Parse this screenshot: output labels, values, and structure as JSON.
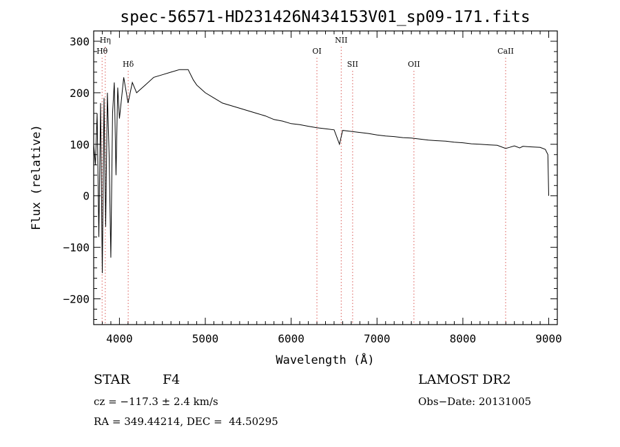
{
  "chart_data": {
    "type": "line",
    "title": "spec-56571-HD231426N434153V01_sp09-171.fits",
    "xlabel": "Wavelength (Å)",
    "ylabel": "Flux (relative)",
    "xlim": [
      3700,
      9100
    ],
    "ylim": [
      -250,
      320
    ],
    "x_ticks": [
      4000,
      5000,
      6000,
      7000,
      8000,
      9000
    ],
    "y_ticks": [
      -200,
      -100,
      0,
      100,
      200,
      300
    ],
    "grid": false,
    "series": [
      {
        "x": [
          3700,
          3720,
          3740,
          3760,
          3780,
          3800,
          3820,
          3840,
          3860,
          3880,
          3900,
          3920,
          3940,
          3960,
          3980,
          4000,
          4050,
          4100,
          4150,
          4200,
          4300,
          4400,
          4500,
          4600,
          4700,
          4800,
          4860,
          4900,
          5000,
          5100,
          5200,
          5300,
          5400,
          5500,
          5600,
          5700,
          5800,
          5900,
          6000,
          6100,
          6200,
          6300,
          6400,
          6500,
          6563,
          6600,
          6700,
          6800,
          6900,
          7000,
          7100,
          7200,
          7300,
          7400,
          7500,
          7600,
          7700,
          7800,
          7900,
          8000,
          8100,
          8200,
          8300,
          8400,
          8498,
          8542,
          8600,
          8662,
          8700,
          8800,
          8900,
          8960,
          8990,
          9000
        ],
        "y": [
          100,
          60,
          160,
          -80,
          180,
          -150,
          190,
          -60,
          200,
          80,
          -120,
          160,
          220,
          40,
          210,
          150,
          230,
          180,
          220,
          200,
          215,
          230,
          235,
          240,
          245,
          245,
          225,
          215,
          200,
          190,
          180,
          175,
          170,
          165,
          160,
          155,
          148,
          145,
          140,
          138,
          135,
          132,
          130,
          128,
          100,
          127,
          125,
          123,
          121,
          118,
          116,
          115,
          113,
          112,
          110,
          108,
          107,
          106,
          104,
          103,
          101,
          100,
          99,
          98,
          92,
          94,
          97,
          93,
          96,
          95,
          94,
          90,
          80,
          0
        ]
      }
    ],
    "lines": [
      {
        "label": "Hη",
        "x": 3835,
        "row": 1
      },
      {
        "label": "Hθ",
        "x": 3798,
        "row": 2
      },
      {
        "label": "Hδ",
        "x": 4102,
        "row": 3
      },
      {
        "label": "OI",
        "x": 6300,
        "row": 2
      },
      {
        "label": "NII",
        "x": 6583,
        "row": 1
      },
      {
        "label": "SII",
        "x": 6716,
        "row": 3
      },
      {
        "label": "OII",
        "x": 7430,
        "row": 3
      },
      {
        "label": "CaII",
        "x": 8498,
        "row": 2
      }
    ]
  },
  "info": {
    "object_type": "STAR",
    "subclass": "F4",
    "cz": "cz = −117.3 ± 2.4 km/s",
    "radec": "RA = 349.44214, DEC =  44.50295",
    "survey": "LAMOST DR2",
    "obs_date": "Obs−Date: 20131005"
  }
}
